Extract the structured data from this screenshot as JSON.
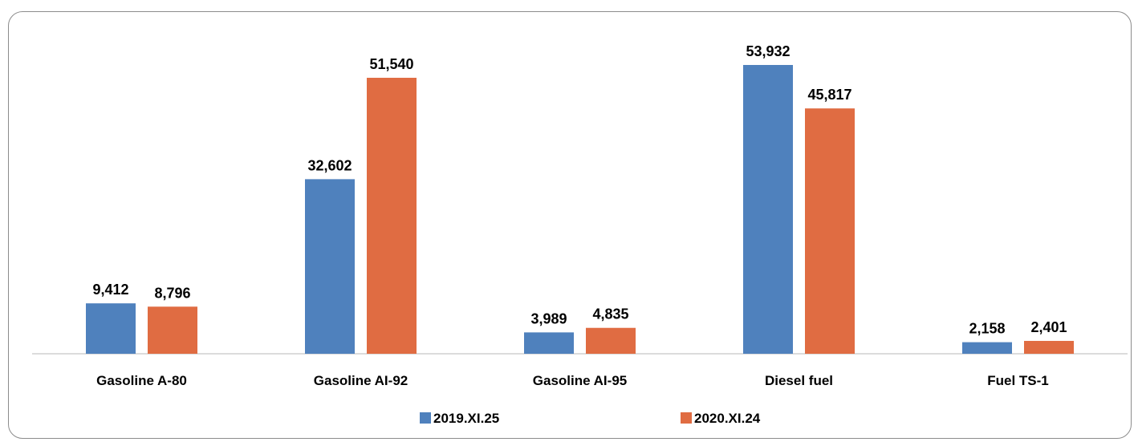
{
  "chart_data": {
    "type": "bar",
    "title": "",
    "xlabel": "",
    "ylabel": "",
    "categories": [
      "Gasoline A-80",
      "Gasoline AI-92",
      "Gasoline AI-95",
      "Diesel fuel",
      "Fuel TS-1"
    ],
    "series": [
      {
        "name": "2019.XI.25",
        "color": "#4f81bd",
        "values": [
          9412,
          32602,
          3989,
          53932,
          2158
        ],
        "labels": [
          "9,412",
          "32,602",
          "3,989",
          "53,932",
          "2,158"
        ]
      },
      {
        "name": "2020.XI.24",
        "color": "#e06c42",
        "values": [
          8796,
          51540,
          4835,
          45817,
          2401
        ],
        "labels": [
          "8,796",
          "51,540",
          "4,835",
          "45,817",
          "2,401"
        ]
      }
    ],
    "ylim": [
      0,
      56000
    ],
    "grid": false,
    "legend": "bottom-center",
    "data_labels": true
  }
}
